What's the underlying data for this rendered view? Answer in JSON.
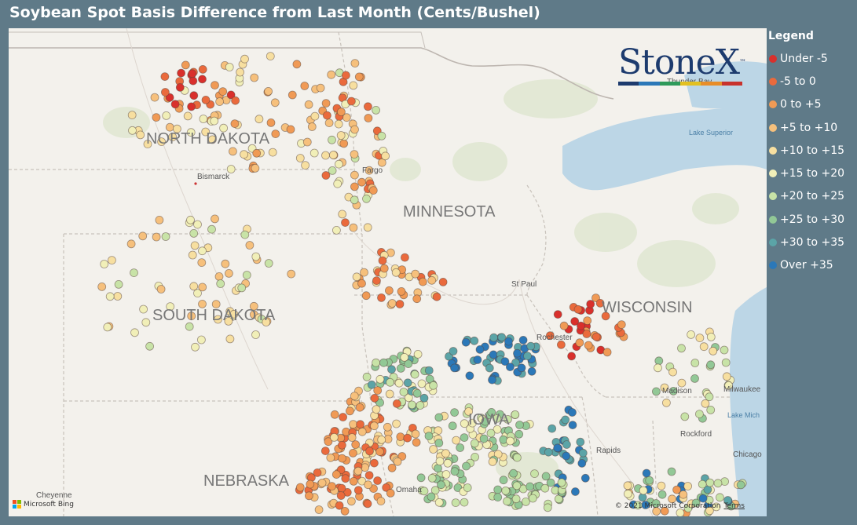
{
  "title": "Soybean Spot Basis Difference from Last Month (Cents/Bushel)",
  "legend": {
    "title": "Legend",
    "items": [
      {
        "label": "Under -5",
        "color": "#d9302c"
      },
      {
        "label": "-5 to 0",
        "color": "#ea6a3c"
      },
      {
        "label": "0 to +5",
        "color": "#f09a55"
      },
      {
        "label": "+5 to +10",
        "color": "#f6c07c"
      },
      {
        "label": "+10 to +15",
        "color": "#f7dfa0"
      },
      {
        "label": "+15 to +20",
        "color": "#f1efb8"
      },
      {
        "label": "+20 to +25",
        "color": "#c8e3a7"
      },
      {
        "label": "+25 to +30",
        "color": "#92c896"
      },
      {
        "label": "+30 to +35",
        "color": "#5ba4a7"
      },
      {
        "label": "Over +35",
        "color": "#2b78b8"
      }
    ]
  },
  "logo": {
    "name": "StoneX",
    "trademark": "™",
    "bar_colors": [
      "#1d3b6e",
      "#2b78b8",
      "#2e9a5a",
      "#e3c020",
      "#e88d28",
      "#c8322c"
    ]
  },
  "map": {
    "state_labels": [
      "NORTH DAKOTA",
      "MINNESOTA",
      "SOUTH DAKOTA",
      "WISCONSIN",
      "NEBRASKA",
      "IOWA"
    ],
    "city_labels": [
      "Bismarck",
      "Fargo",
      "St Paul",
      "Rochester",
      "Madison",
      "Milwaukee",
      "Rockford",
      "Chicago",
      "Omaha",
      "Cheyenne",
      "Thunder Bay",
      "Rapids"
    ],
    "water_labels": [
      "Lake Superior",
      "Lake Mich"
    ]
  },
  "attribution": {
    "bing": "Microsoft Bing",
    "copyright": "© 2021 Microsoft Corporation",
    "terms": "Terms"
  }
}
